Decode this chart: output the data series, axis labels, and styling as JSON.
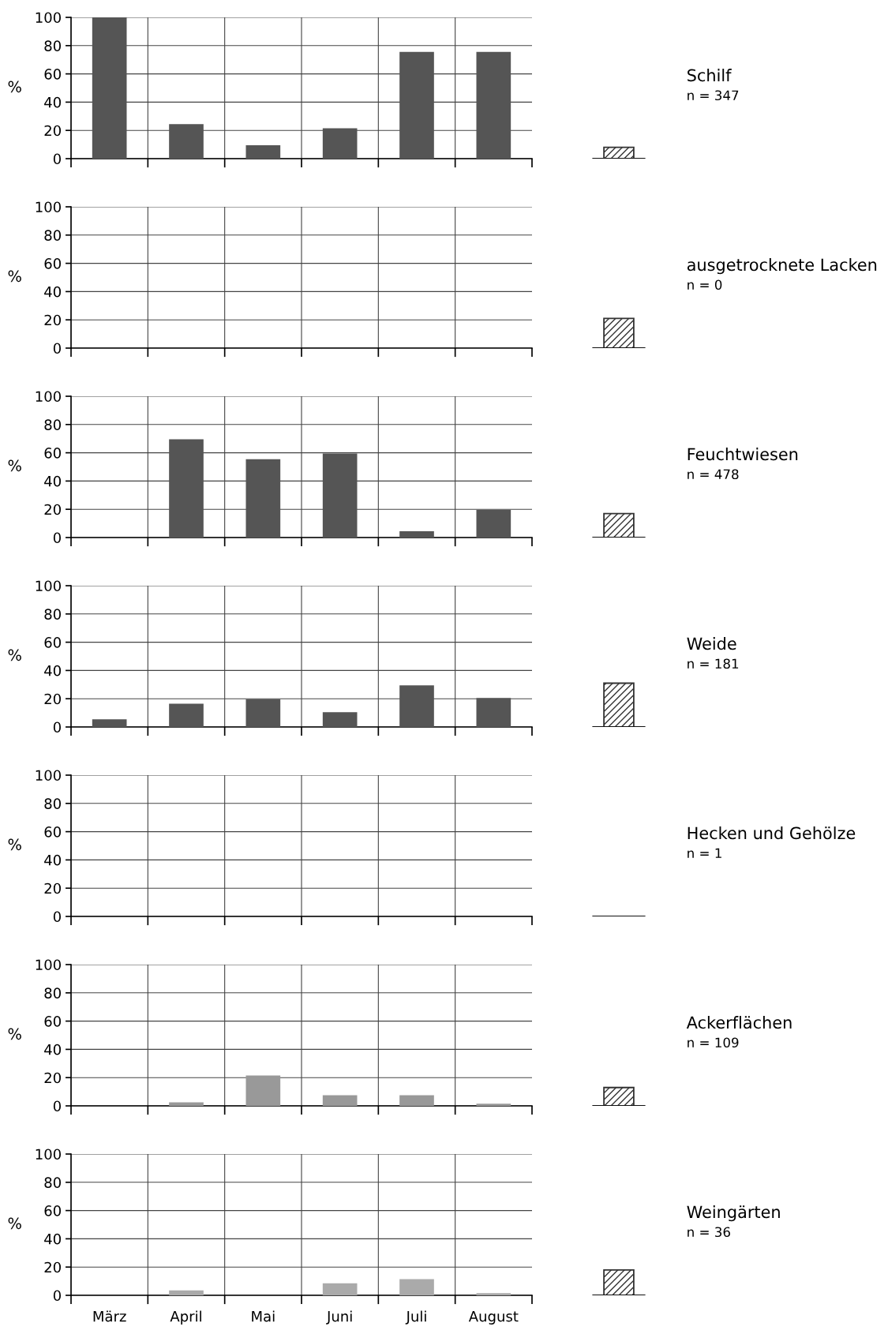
{
  "chart_data": [
    {
      "type": "bar",
      "categories": [
        null,
        null,
        null,
        null,
        null,
        null
      ],
      "ylabel": "%",
      "series": [
        {
          "color": "#555555",
          "values": [
            100,
            24,
            9,
            21,
            75,
            75
          ]
        }
      ],
      "ylim": [
        0,
        100
      ],
      "yticks": [
        0,
        20,
        40,
        60,
        80,
        100
      ],
      "grid": true,
      "tick_labels": "y"
    },
    {
      "type": "bar",
      "categories": [
        null
      ],
      "annotations": [
        "Schilf",
        "n = 347"
      ],
      "series": [
        {
          "color": "#333333",
          "values": [
            8
          ]
        }
      ],
      "ylim": [
        0,
        100
      ],
      "tick_labels": false
    },
    {
      "type": "bar",
      "categories": [
        null,
        null,
        null,
        null,
        null,
        null
      ],
      "ylabel": "%",
      "series": [
        {
          "color": "#555555",
          "values": [
            0,
            0,
            0,
            0,
            0,
            0
          ]
        }
      ],
      "ylim": [
        0,
        100
      ],
      "yticks": [
        0,
        20,
        40,
        60,
        80,
        100
      ],
      "grid": true,
      "tick_labels": "y"
    },
    {
      "type": "bar",
      "categories": [
        null
      ],
      "annotations": [
        "ausgetrocknete Lacken",
        "n = 0"
      ],
      "series": [
        {
          "color": "#333333",
          "values": [
            21
          ]
        }
      ],
      "ylim": [
        0,
        100
      ],
      "tick_labels": false
    },
    {
      "type": "bar",
      "categories": [
        null,
        null,
        null,
        null,
        null,
        null
      ],
      "ylabel": "%",
      "series": [
        {
          "color": "#555555",
          "values": [
            0,
            69,
            55,
            59,
            4,
            19
          ]
        }
      ],
      "ylim": [
        0,
        100
      ],
      "yticks": [
        0,
        20,
        40,
        60,
        80,
        100
      ],
      "grid": true,
      "tick_labels": "y"
    },
    {
      "type": "bar",
      "categories": [
        null
      ],
      "annotations": [
        "Feuchtwiesen",
        "n = 478"
      ],
      "series": [
        {
          "color": "#333333",
          "values": [
            17
          ]
        }
      ],
      "ylim": [
        0,
        100
      ],
      "tick_labels": false
    },
    {
      "type": "bar",
      "categories": [
        null,
        null,
        null,
        null,
        null,
        null
      ],
      "ylabel": "%",
      "series": [
        {
          "color": "#555555",
          "values": [
            5,
            16,
            19,
            10,
            29,
            20
          ]
        }
      ],
      "ylim": [
        0,
        100
      ],
      "yticks": [
        0,
        20,
        40,
        60,
        80,
        100
      ],
      "grid": true,
      "tick_labels": "y"
    },
    {
      "type": "bar",
      "categories": [
        null
      ],
      "annotations": [
        "Weide",
        "n = 181"
      ],
      "series": [
        {
          "color": "#333333",
          "values": [
            31
          ]
        }
      ],
      "ylim": [
        0,
        100
      ],
      "tick_labels": false
    },
    {
      "type": "bar",
      "categories": [
        null,
        null,
        null,
        null,
        null,
        null
      ],
      "ylabel": "%",
      "series": [
        {
          "color": "#555555",
          "values": [
            0,
            0,
            0,
            0,
            0,
            0
          ]
        }
      ],
      "ylim": [
        0,
        100
      ],
      "yticks": [
        0,
        20,
        40,
        60,
        80,
        100
      ],
      "grid": true,
      "tick_labels": "y"
    },
    {
      "type": "bar",
      "categories": [
        null
      ],
      "annotations": [
        "Hecken und Gehölze",
        "n = 1"
      ],
      "series": [
        {
          "color": "#333333",
          "values": [
            0
          ]
        }
      ],
      "ylim": [
        0,
        100
      ],
      "tick_labels": false
    },
    {
      "type": "bar",
      "categories": [
        null,
        null,
        null,
        null,
        null,
        null
      ],
      "ylabel": "%",
      "series": [
        {
          "color": "#999999",
          "values": [
            0,
            2,
            21,
            7,
            7,
            1
          ]
        }
      ],
      "ylim": [
        0,
        100
      ],
      "yticks": [
        0,
        20,
        40,
        60,
        80,
        100
      ],
      "grid": true,
      "tick_labels": "y"
    },
    {
      "type": "bar",
      "categories": [
        null
      ],
      "annotations": [
        "Ackerflächen",
        "n = 109"
      ],
      "series": [
        {
          "color": "#333333",
          "values": [
            13
          ]
        }
      ],
      "ylim": [
        0,
        100
      ],
      "tick_labels": false
    },
    {
      "type": "bar",
      "categories": [
        "März",
        "April",
        "Mai",
        "Juni",
        "Juli",
        "August"
      ],
      "ylabel": "%",
      "series": [
        {
          "color": "#aaaaaa",
          "values": [
            0,
            3,
            0,
            8,
            11,
            1
          ]
        }
      ],
      "ylim": [
        0,
        100
      ],
      "yticks": [
        0,
        20,
        40,
        60,
        80,
        100
      ],
      "grid": true
    },
    {
      "type": "bar",
      "categories": [
        null
      ],
      "annotations": [
        "Weingärten",
        "n = 36"
      ],
      "series": [
        {
          "color": "#333333",
          "values": [
            18
          ]
        }
      ],
      "ylim": [
        0,
        100
      ],
      "tick_labels": false
    }
  ]
}
